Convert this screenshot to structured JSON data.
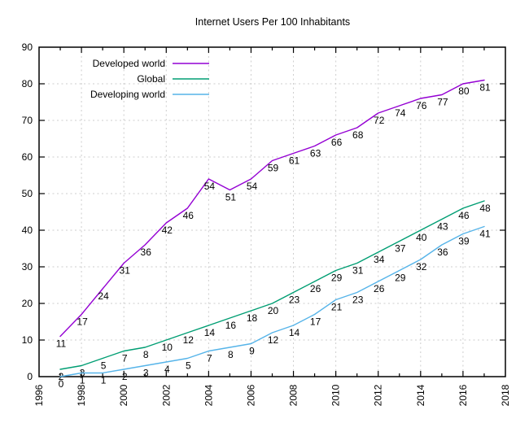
{
  "page": {
    "background": "#ffffff"
  },
  "chart_data": {
    "type": "line",
    "title": "Internet Users Per 100 Inhabitants",
    "xlabel": "",
    "ylabel": "",
    "x": [
      1997,
      1998,
      1999,
      2000,
      2001,
      2002,
      2003,
      2004,
      2005,
      2006,
      2007,
      2008,
      2009,
      2010,
      2011,
      2012,
      2013,
      2014,
      2015,
      2016,
      2017
    ],
    "series": [
      {
        "name": "Developed world",
        "color": "#9400d3",
        "values": [
          11,
          17,
          24,
          31,
          36,
          42,
          46,
          54,
          51,
          54,
          59,
          61,
          63,
          66,
          68,
          72,
          74,
          76,
          77,
          80,
          81
        ]
      },
      {
        "name": "Global",
        "color": "#009e73",
        "values": [
          2,
          3,
          5,
          7,
          8,
          10,
          12,
          14,
          16,
          18,
          20,
          23,
          26,
          29,
          31,
          34,
          37,
          40,
          43,
          46,
          48
        ]
      },
      {
        "name": "Developing world",
        "color": "#56b4e9",
        "values": [
          0,
          1,
          1,
          2,
          3,
          4,
          5,
          7,
          8,
          9,
          12,
          14,
          17,
          21,
          23,
          26,
          29,
          32,
          36,
          39,
          41
        ]
      }
    ],
    "xlim": [
      1996,
      2018
    ],
    "ylim": [
      0,
      90
    ],
    "xtick_step_major": 2,
    "xtick_labels": [
      "1996",
      "1998",
      "2000",
      "2002",
      "2004",
      "2006",
      "2008",
      "2010",
      "2012",
      "2014",
      "2016",
      "2018"
    ],
    "ytick_step": 10,
    "ytick_labels": [
      "0",
      "10",
      "20",
      "30",
      "40",
      "50",
      "60",
      "70",
      "80",
      "90"
    ],
    "grid": "dashed",
    "grid_color": "#cdcdcd",
    "axis_color": "#000000",
    "legend_position": "top-left-inside",
    "legend": [
      "Developed world",
      "Global",
      "Developing world"
    ],
    "data_labels": true,
    "xtick_label_rotation_deg": -90
  }
}
